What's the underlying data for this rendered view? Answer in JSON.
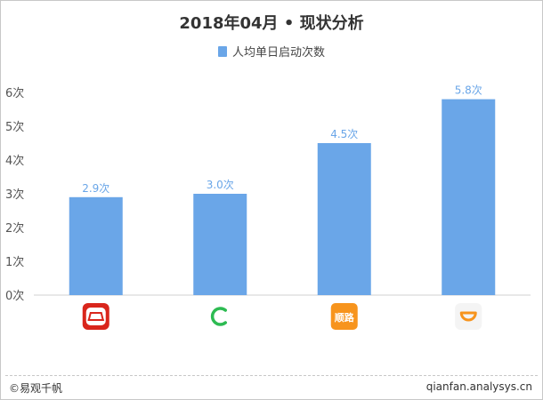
{
  "chart_data": {
    "type": "bar",
    "title": "2018年04月 • 现状分析",
    "legend": [
      "人均单日启动次数"
    ],
    "categories_icons": [
      "app-icon-red-car",
      "app-icon-green-c",
      "app-icon-orange-shunlu",
      "app-icon-orange-didi"
    ],
    "values": [
      2.9,
      3.0,
      4.5,
      5.8
    ],
    "value_labels": [
      "2.9次",
      "3.0次",
      "4.5次",
      "5.8次"
    ],
    "yticks": [
      "0次",
      "1次",
      "2次",
      "3次",
      "4次",
      "5次",
      "6次"
    ],
    "ylim": [
      0,
      6
    ],
    "grid": false,
    "legend_position": "top-center",
    "colors": {
      "bar": "#6aa6e8",
      "label": "#6aa6e8",
      "axis": "#d0d0d0",
      "tick_text": "#555555"
    }
  },
  "icons": {
    "icon_1_color": "#d9261c",
    "icon_2_color": "#2dbb52",
    "icon_3_color": "#f7941d",
    "icon_3_text": "顺路",
    "icon_4_color": "#f7941d"
  },
  "footer": {
    "left": "©易观千帆",
    "right": "qianfan.analysys.cn"
  }
}
